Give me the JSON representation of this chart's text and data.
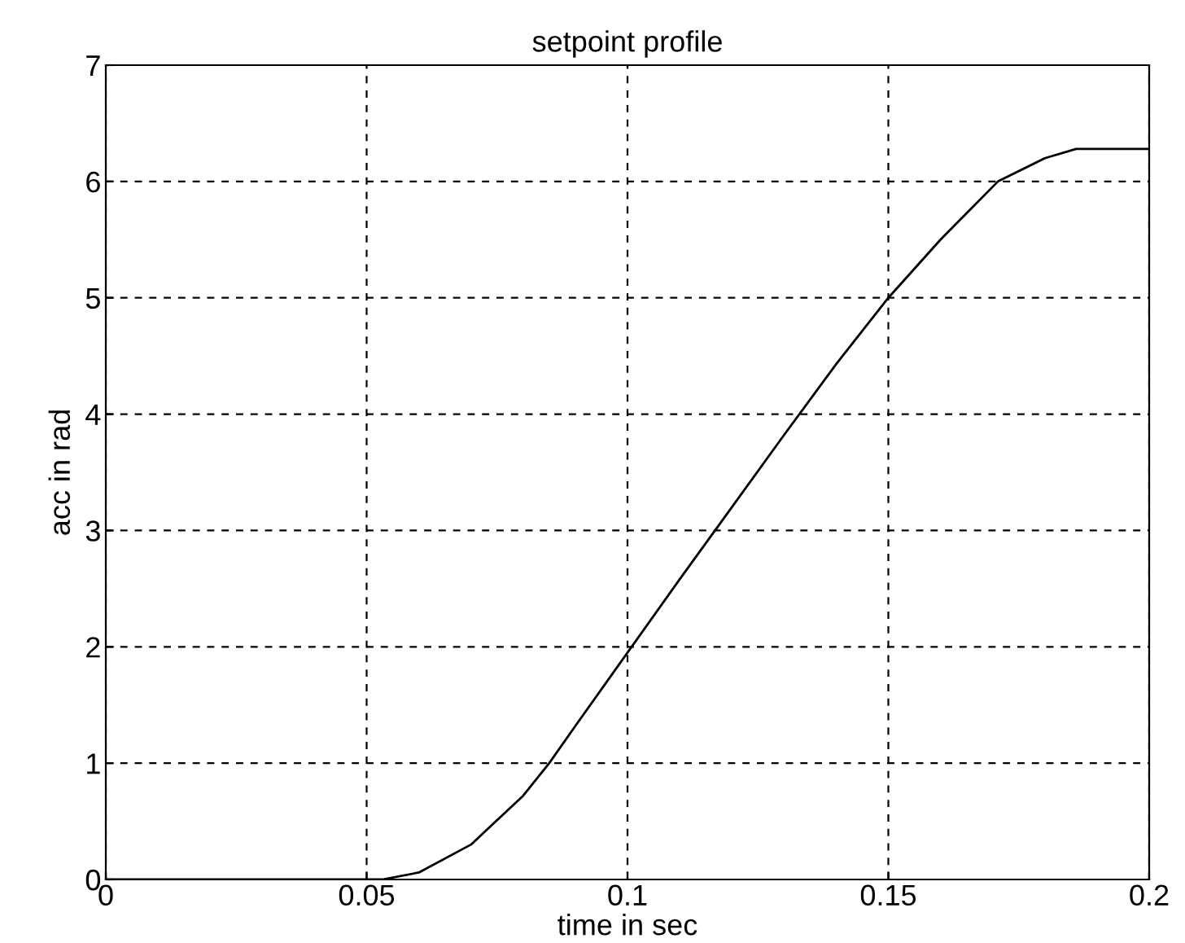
{
  "chart_data": {
    "type": "line",
    "title": "setpoint profile",
    "xlabel": "time in sec",
    "ylabel": "acc in rad",
    "x": [
      0,
      0.053,
      0.06,
      0.07,
      0.08,
      0.085,
      0.09,
      0.1,
      0.11,
      0.12,
      0.13,
      0.14,
      0.15,
      0.16,
      0.171,
      0.18,
      0.186,
      0.2
    ],
    "series": [
      {
        "color": "#000000",
        "values": [
          0,
          0,
          0.06,
          0.3,
          0.72,
          1.0,
          1.32,
          1.95,
          2.58,
          3.2,
          3.82,
          4.43,
          5.0,
          5.5,
          6.0,
          6.2,
          6.28,
          6.28
        ]
      }
    ],
    "xlim": [
      0,
      0.2
    ],
    "ylim": [
      0,
      7
    ],
    "xticks": [
      0,
      0.05,
      0.1,
      0.15,
      0.2
    ],
    "yticks": [
      0,
      1,
      2,
      3,
      4,
      5,
      6,
      7
    ],
    "grid": true,
    "line_style": "solid"
  }
}
